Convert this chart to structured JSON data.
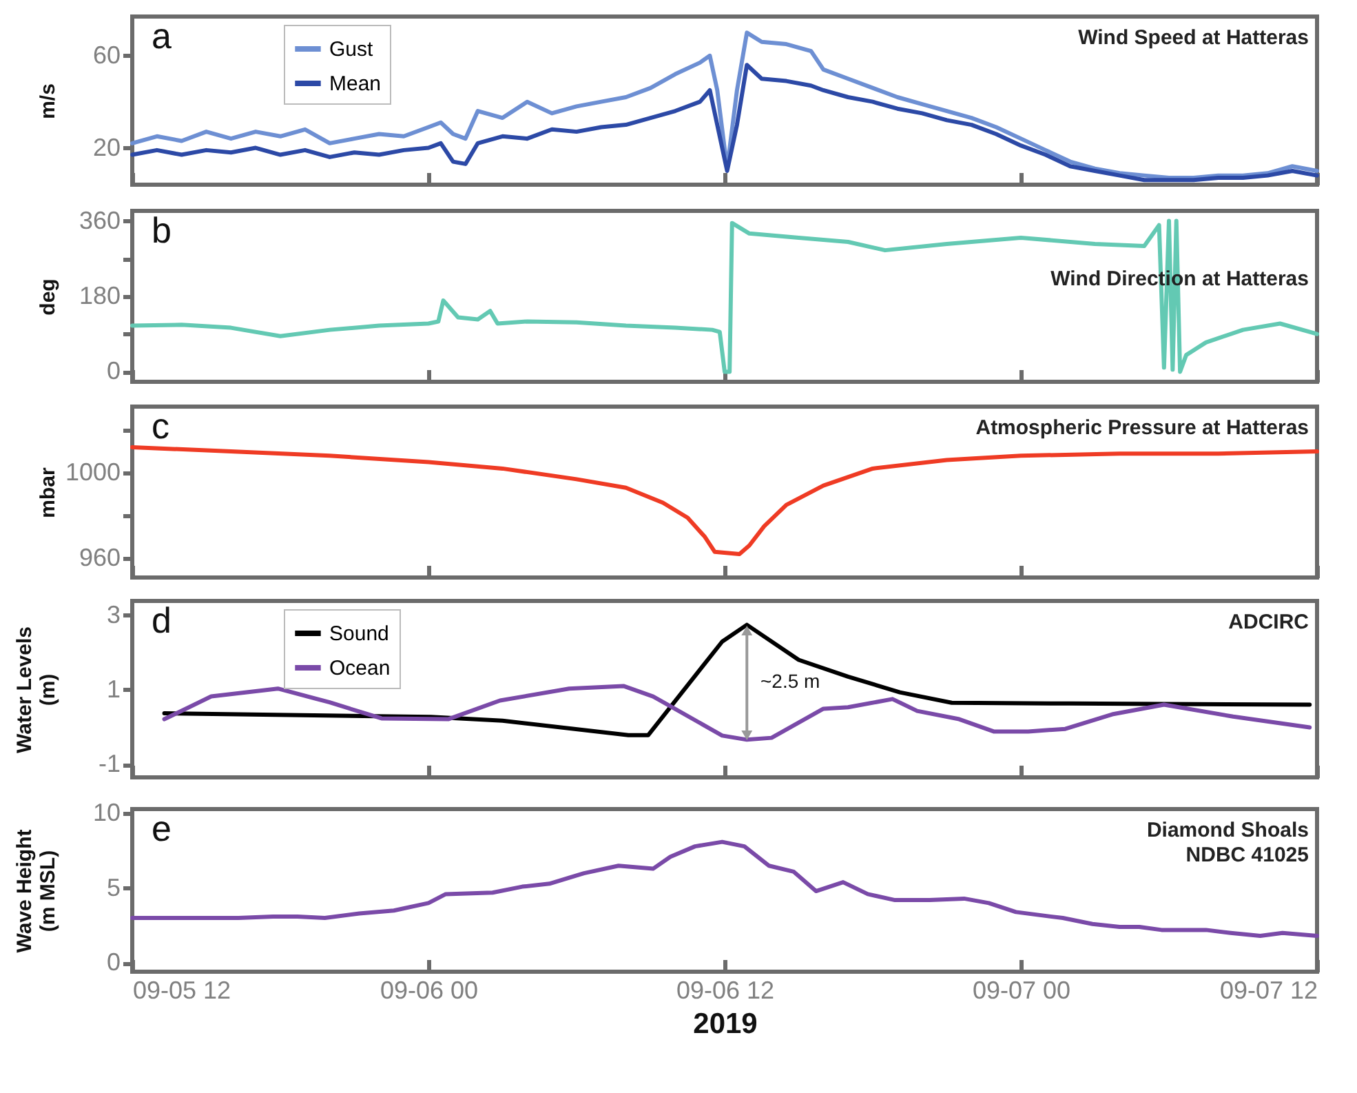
{
  "chart_data": [
    {
      "type": "line",
      "title": "Wind Speed at Hatteras",
      "ylabel": "m/s",
      "annotations": [
        "a"
      ],
      "legend": "top left",
      "tick_labels": "y",
      "xlim": [
        "2019-09-05T12:00",
        "2019-09-07T12:00"
      ],
      "xticks": [
        {
          "value": "2019-09-05T12:00",
          "label": null
        },
        {
          "value": "2019-09-06T00:00",
          "label": null
        },
        {
          "value": "2019-09-06T12:00",
          "label": null
        },
        {
          "value": "2019-09-07T00:00",
          "label": null
        },
        {
          "value": "2019-09-07T12:00",
          "label": null
        }
      ],
      "ylim": [
        4,
        77
      ],
      "yticks": [
        20,
        60
      ],
      "x": [
        "2019-09-05T12:00",
        "2019-09-05T13:00",
        "2019-09-05T14:00",
        "2019-09-05T15:00",
        "2019-09-05T16:00",
        "2019-09-05T17:00",
        "2019-09-05T18:00",
        "2019-09-05T19:00",
        "2019-09-05T20:00",
        "2019-09-05T21:00",
        "2019-09-05T22:00",
        "2019-09-05T23:00",
        "2019-09-06T00:00",
        "2019-09-06T00:30",
        "2019-09-06T01:00",
        "2019-09-06T01:30",
        "2019-09-06T02:00",
        "2019-09-06T03:00",
        "2019-09-06T04:00",
        "2019-09-06T05:00",
        "2019-09-06T06:00",
        "2019-09-06T07:00",
        "2019-09-06T08:00",
        "2019-09-06T09:00",
        "2019-09-06T10:00",
        "2019-09-06T11:00",
        "2019-09-06T11:24",
        "2019-09-06T11:42",
        "2019-09-06T12:06",
        "2019-09-06T12:30",
        "2019-09-06T12:54",
        "2019-09-06T13:30",
        "2019-09-06T14:30",
        "2019-09-06T15:30",
        "2019-09-06T16:00",
        "2019-09-06T17:00",
        "2019-09-06T18:00",
        "2019-09-06T19:00",
        "2019-09-06T20:00",
        "2019-09-06T21:00",
        "2019-09-06T22:00",
        "2019-09-06T23:00",
        "2019-09-07T00:00",
        "2019-09-07T01:00",
        "2019-09-07T02:00",
        "2019-09-07T03:00",
        "2019-09-07T04:00",
        "2019-09-07T05:00",
        "2019-09-07T06:00",
        "2019-09-07T07:00",
        "2019-09-07T08:00",
        "2019-09-07T09:00",
        "2019-09-07T10:00",
        "2019-09-07T11:00",
        "2019-09-07T12:00"
      ],
      "series": [
        {
          "name": "Gust",
          "color": "#6d8fd3",
          "values": [
            22,
            25,
            23,
            27,
            24,
            27,
            25,
            28,
            22,
            24,
            26,
            25,
            29,
            31,
            26,
            24,
            36,
            33,
            40,
            35,
            38,
            40,
            42,
            46,
            52,
            57,
            60,
            45,
            11,
            45,
            70,
            66,
            65,
            62,
            54,
            50,
            46,
            42,
            39,
            36,
            33,
            29,
            24,
            19,
            14,
            11,
            9,
            8,
            7,
            7,
            8,
            8,
            9,
            12,
            10
          ]
        },
        {
          "name": "Mean",
          "color": "#2c49a6",
          "values": [
            17,
            19,
            17,
            19,
            18,
            20,
            17,
            19,
            16,
            18,
            17,
            19,
            20,
            22,
            14,
            13,
            22,
            25,
            24,
            28,
            27,
            29,
            30,
            33,
            36,
            40,
            45,
            30,
            10,
            30,
            56,
            50,
            49,
            47,
            45,
            42,
            40,
            37,
            35,
            32,
            30,
            26,
            21,
            17,
            12,
            10,
            8,
            6,
            6,
            6,
            7,
            7,
            8,
            10,
            8
          ]
        }
      ]
    },
    {
      "type": "line",
      "title": "Wind Direction at Hatteras",
      "ylabel": "deg",
      "annotations": [
        "b"
      ],
      "tick_labels": "y",
      "xlim": [
        "2019-09-05T12:00",
        "2019-09-07T12:00"
      ],
      "xticks": [
        {
          "value": "2019-09-05T12:00",
          "label": null
        },
        {
          "value": "2019-09-06T00:00",
          "label": null
        },
        {
          "value": "2019-09-06T12:00",
          "label": null
        },
        {
          "value": "2019-09-07T00:00",
          "label": null
        },
        {
          "value": "2019-09-07T12:00",
          "label": null
        }
      ],
      "ylim": [
        -24,
        384
      ],
      "yticks": [
        0,
        {
          "value": 90,
          "label": null
        },
        180,
        {
          "value": 270,
          "label": null
        },
        360
      ],
      "x": [
        "2019-09-05T12:00",
        "2019-09-05T14:00",
        "2019-09-05T16:00",
        "2019-09-05T18:00",
        "2019-09-05T20:00",
        "2019-09-05T22:00",
        "2019-09-06T00:00",
        "2019-09-06T00:24",
        "2019-09-06T00:36",
        "2019-09-06T01:12",
        "2019-09-06T02:00",
        "2019-09-06T02:30",
        "2019-09-06T02:48",
        "2019-09-06T04:00",
        "2019-09-06T06:00",
        "2019-09-06T08:00",
        "2019-09-06T10:00",
        "2019-09-06T11:30",
        "2019-09-06T11:48",
        "2019-09-06T12:00",
        "2019-09-06T12:12",
        "2019-09-06T12:18",
        "2019-09-06T13:00",
        "2019-09-06T15:00",
        "2019-09-06T17:00",
        "2019-09-06T18:30",
        "2019-09-06T21:00",
        "2019-09-07T00:00",
        "2019-09-07T03:00",
        "2019-09-07T05:00",
        "2019-09-07T05:36",
        "2019-09-07T05:48",
        "2019-09-07T06:00",
        "2019-09-07T06:09",
        "2019-09-07T06:18",
        "2019-09-07T06:27",
        "2019-09-07T06:42",
        "2019-09-07T07:30",
        "2019-09-07T09:00",
        "2019-09-07T10:30",
        "2019-09-07T12:00"
      ],
      "series": [
        {
          "color": "#63c9b3",
          "values": [
            110,
            112,
            105,
            85,
            100,
            110,
            115,
            120,
            170,
            130,
            125,
            145,
            115,
            120,
            118,
            110,
            105,
            100,
            95,
            0,
            0,
            355,
            330,
            320,
            310,
            290,
            305,
            320,
            305,
            300,
            350,
            10,
            360,
            5,
            360,
            0,
            40,
            70,
            100,
            115,
            90
          ]
        }
      ]
    },
    {
      "type": "line",
      "title": "Atmospheric Pressure at Hatteras",
      "ylabel": "mbar",
      "annotations": [
        "c"
      ],
      "tick_labels": "y",
      "xlim": [
        "2019-09-05T12:00",
        "2019-09-07T12:00"
      ],
      "xticks": [
        {
          "value": "2019-09-05T12:00",
          "label": null
        },
        {
          "value": "2019-09-06T00:00",
          "label": null
        },
        {
          "value": "2019-09-06T12:00",
          "label": null
        },
        {
          "value": "2019-09-07T00:00",
          "label": null
        },
        {
          "value": "2019-09-07T12:00",
          "label": null
        }
      ],
      "ylim": [
        951,
        1031
      ],
      "yticks": [
        960,
        {
          "value": 980,
          "label": null
        },
        1000,
        {
          "value": 1020,
          "label": null
        }
      ],
      "x": [
        "2019-09-05T12:00",
        "2019-09-05T16:00",
        "2019-09-05T20:00",
        "2019-09-06T00:00",
        "2019-09-06T03:00",
        "2019-09-06T06:00",
        "2019-09-06T08:00",
        "2019-09-06T09:30",
        "2019-09-06T10:30",
        "2019-09-06T11:12",
        "2019-09-06T11:36",
        "2019-09-06T12:36",
        "2019-09-06T13:00",
        "2019-09-06T13:36",
        "2019-09-06T14:30",
        "2019-09-06T16:00",
        "2019-09-06T18:00",
        "2019-09-06T21:00",
        "2019-09-07T00:00",
        "2019-09-07T04:00",
        "2019-09-07T08:00",
        "2019-09-07T12:00"
      ],
      "series": [
        {
          "color": "#ef3b24",
          "values": [
            1012,
            1010,
            1008,
            1005,
            1002,
            997,
            993,
            986,
            979,
            970,
            963,
            962,
            966,
            975,
            985,
            994,
            1002,
            1006,
            1008,
            1009,
            1009,
            1010
          ]
        }
      ]
    },
    {
      "type": "line",
      "title": "ADCIRC",
      "ylabel": "Water Levels (m)",
      "annotations": [
        "d",
        "~2.5 m"
      ],
      "legend": "top left",
      "tick_labels": "y",
      "xlim": [
        "2019-09-05T12:00",
        "2019-09-07T12:00"
      ],
      "xticks": [
        {
          "value": "2019-09-05T12:00",
          "label": null
        },
        {
          "value": "2019-09-06T00:00",
          "label": null
        },
        {
          "value": "2019-09-06T12:00",
          "label": null
        },
        {
          "value": "2019-09-07T00:00",
          "label": null
        },
        {
          "value": "2019-09-07T12:00",
          "label": null
        }
      ],
      "ylim": [
        -1.35,
        3.38
      ],
      "yticks": [
        -1,
        1,
        3
      ],
      "series": [
        {
          "name": "Sound",
          "color": "#000000",
          "x": [
            "2019-09-05T13:18",
            "2019-09-06T00:06",
            "2019-09-06T03:00",
            "2019-09-06T08:06",
            "2019-09-06T08:54",
            "2019-09-06T11:54",
            "2019-09-06T12:54",
            "2019-09-06T15:00",
            "2019-09-06T17:00",
            "2019-09-06T19:06",
            "2019-09-06T21:12",
            "2019-09-07T02:00",
            "2019-09-07T11:42"
          ],
          "values": [
            0.37,
            0.27,
            0.17,
            -0.22,
            -0.22,
            2.29,
            2.74,
            1.8,
            1.35,
            0.93,
            0.65,
            0.63,
            0.6
          ]
        },
        {
          "name": "Ocean",
          "color": "#7a4aa8",
          "x": [
            "2019-09-05T13:18",
            "2019-09-05T15:12",
            "2019-09-05T17:54",
            "2019-09-05T20:00",
            "2019-09-05T22:06",
            "2019-09-06T00:48",
            "2019-09-06T02:54",
            "2019-09-06T05:42",
            "2019-09-06T07:54",
            "2019-09-06T09:06",
            "2019-09-06T11:54",
            "2019-09-06T12:54",
            "2019-09-06T13:54",
            "2019-09-06T16:00",
            "2019-09-06T17:00",
            "2019-09-06T18:48",
            "2019-09-06T19:48",
            "2019-09-06T21:30",
            "2019-09-06T22:54",
            "2019-09-07T00:18",
            "2019-09-07T01:48",
            "2019-09-07T03:42",
            "2019-09-07T05:48",
            "2019-09-07T08:36",
            "2019-09-07T11:42"
          ],
          "values": [
            0.21,
            0.82,
            1.03,
            0.66,
            0.23,
            0.21,
            0.71,
            1.03,
            1.1,
            0.82,
            -0.23,
            -0.34,
            -0.29,
            0.49,
            0.53,
            0.75,
            0.43,
            0.21,
            -0.12,
            -0.12,
            -0.05,
            0.34,
            0.6,
            0.28,
            -0.01
          ]
        }
      ]
    },
    {
      "type": "line",
      "title": "Diamond Shoals\nNDBC 41025",
      "ylabel": "Wave Height (m MSL)",
      "xlabel": "2019",
      "annotations": [
        "e"
      ],
      "xlim": [
        "2019-09-05T12:00",
        "2019-09-07T12:00"
      ],
      "xticks": [
        {
          "value": "2019-09-05T12:00",
          "label": "09-05 12"
        },
        {
          "value": "2019-09-06T00:00",
          "label": "09-06 00"
        },
        {
          "value": "2019-09-06T12:00",
          "label": "09-06 12"
        },
        {
          "value": "2019-09-07T00:00",
          "label": "09-07 00"
        },
        {
          "value": "2019-09-07T12:00",
          "label": "09-07 12"
        }
      ],
      "ylim": [
        -0.6,
        10.3
      ],
      "yticks": [
        0,
        5,
        10
      ],
      "x": [
        "2019-09-05T12:00",
        "2019-09-05T13:30",
        "2019-09-05T14:54",
        "2019-09-05T16:18",
        "2019-09-05T17:42",
        "2019-09-05T18:42",
        "2019-09-05T19:48",
        "2019-09-05T21:12",
        "2019-09-05T22:36",
        "2019-09-06T00:00",
        "2019-09-06T00:42",
        "2019-09-06T02:36",
        "2019-09-06T03:48",
        "2019-09-06T04:54",
        "2019-09-06T06:18",
        "2019-09-06T07:42",
        "2019-09-06T09:06",
        "2019-09-06T09:48",
        "2019-09-06T10:48",
        "2019-09-06T11:54",
        "2019-09-06T12:48",
        "2019-09-06T13:48",
        "2019-09-06T14:48",
        "2019-09-06T15:42",
        "2019-09-06T16:48",
        "2019-09-06T17:48",
        "2019-09-06T18:54",
        "2019-09-06T20:18",
        "2019-09-06T21:42",
        "2019-09-06T22:42",
        "2019-09-06T23:48",
        "2019-09-07T01:12",
        "2019-09-07T01:42",
        "2019-09-07T02:54",
        "2019-09-07T04:00",
        "2019-09-07T04:48",
        "2019-09-07T05:42",
        "2019-09-07T07:30",
        "2019-09-07T08:30",
        "2019-09-07T09:42",
        "2019-09-07T10:36",
        "2019-09-07T12:00"
      ],
      "series": [
        {
          "color": "#7a4aa8",
          "values": [
            3.0,
            3.0,
            3.0,
            3.0,
            3.1,
            3.1,
            3.0,
            3.3,
            3.5,
            4.0,
            4.6,
            4.7,
            5.1,
            5.3,
            6.0,
            6.5,
            6.3,
            7.1,
            7.8,
            8.1,
            7.8,
            6.5,
            6.1,
            4.8,
            5.4,
            4.6,
            4.2,
            4.2,
            4.3,
            4.0,
            3.4,
            3.1,
            3.0,
            2.6,
            2.4,
            2.4,
            2.2,
            2.2,
            2.0,
            1.8,
            2.0,
            1.8
          ]
        }
      ]
    }
  ]
}
